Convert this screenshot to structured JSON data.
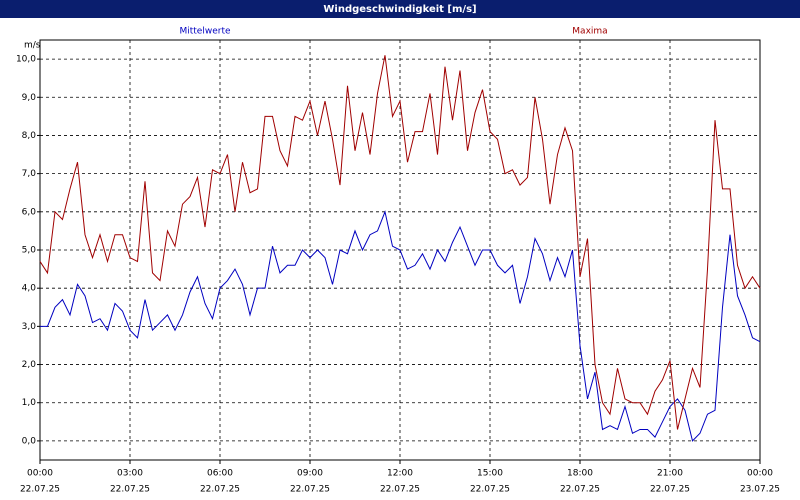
{
  "chart_data": {
    "type": "line",
    "title": "Windgeschwindigkeit [m/s]",
    "ylabel": "m/s",
    "x": [
      0,
      0.25,
      0.5,
      0.75,
      1,
      1.25,
      1.5,
      1.75,
      2,
      2.25,
      2.5,
      2.75,
      3,
      3.25,
      3.5,
      3.75,
      4,
      4.25,
      4.5,
      4.75,
      5,
      5.25,
      5.5,
      5.75,
      6,
      6.25,
      6.5,
      6.75,
      7,
      7.25,
      7.5,
      7.75,
      8,
      8.25,
      8.5,
      8.75,
      9,
      9.25,
      9.5,
      9.75,
      10,
      10.25,
      10.5,
      10.75,
      11,
      11.25,
      11.5,
      11.75,
      12,
      12.25,
      12.5,
      12.75,
      13,
      13.25,
      13.5,
      13.75,
      14,
      14.25,
      14.5,
      14.75,
      15,
      15.25,
      15.5,
      15.75,
      16,
      16.25,
      16.5,
      16.75,
      17,
      17.25,
      17.5,
      17.75,
      18,
      18.25,
      18.5,
      18.75,
      19,
      19.25,
      19.5,
      19.75,
      20,
      20.25,
      20.5,
      20.75,
      21,
      21.25,
      21.5,
      21.75,
      22,
      22.25,
      22.5,
      22.75,
      23,
      23.25,
      23.5,
      23.75,
      24
    ],
    "series": [
      {
        "name": "Mittelwerte",
        "color": "#0000c0",
        "values": [
          3.0,
          3.0,
          3.5,
          3.7,
          3.3,
          4.1,
          3.8,
          3.1,
          3.2,
          2.9,
          3.6,
          3.4,
          2.9,
          2.7,
          3.7,
          2.9,
          3.1,
          3.3,
          2.9,
          3.3,
          3.9,
          4.3,
          3.6,
          3.2,
          4.0,
          4.2,
          4.5,
          4.1,
          3.3,
          4.0,
          4.0,
          5.1,
          4.4,
          4.6,
          4.6,
          5.0,
          4.8,
          5.0,
          4.8,
          4.1,
          5.0,
          4.9,
          5.5,
          5.0,
          5.4,
          5.5,
          6.0,
          5.1,
          5.0,
          4.5,
          4.6,
          4.9,
          4.5,
          5.0,
          4.7,
          5.2,
          5.6,
          5.1,
          4.6,
          5.0,
          5.0,
          4.6,
          4.4,
          4.6,
          3.6,
          4.3,
          5.3,
          4.9,
          4.2,
          4.8,
          4.3,
          5.0,
          2.5,
          1.1,
          1.8,
          0.3,
          0.4,
          0.3,
          0.9,
          0.2,
          0.3,
          0.3,
          0.1,
          0.5,
          0.9,
          1.1,
          0.8,
          0.0,
          0.2,
          0.7,
          0.8,
          3.5,
          5.4,
          3.8,
          3.3,
          2.7,
          2.6
        ]
      },
      {
        "name": "Maxima",
        "color": "#a00000",
        "values": [
          4.7,
          4.4,
          6.0,
          5.8,
          6.6,
          7.3,
          5.4,
          4.8,
          5.4,
          4.7,
          5.4,
          5.4,
          4.8,
          4.7,
          6.8,
          4.4,
          4.2,
          5.5,
          5.1,
          6.2,
          6.4,
          6.9,
          5.6,
          7.1,
          7.0,
          7.5,
          6.0,
          7.3,
          6.5,
          6.6,
          8.5,
          8.5,
          7.6,
          7.2,
          8.5,
          8.4,
          8.9,
          8.0,
          8.9,
          7.9,
          6.7,
          9.3,
          7.6,
          8.6,
          7.5,
          9.1,
          10.1,
          8.5,
          8.9,
          7.3,
          8.1,
          8.1,
          9.1,
          7.5,
          9.8,
          8.4,
          9.7,
          7.6,
          8.6,
          9.2,
          8.1,
          7.9,
          7.0,
          7.1,
          6.7,
          6.9,
          9.0,
          7.9,
          6.2,
          7.5,
          8.2,
          7.6,
          4.3,
          5.3,
          2.0,
          1.0,
          0.7,
          1.9,
          1.1,
          1.0,
          1.0,
          0.7,
          1.3,
          1.6,
          2.1,
          0.3,
          1.1,
          1.9,
          1.4,
          4.5,
          8.4,
          6.6,
          6.6,
          4.6,
          4.0,
          4.3,
          4.0
        ]
      }
    ],
    "xlim": [
      0,
      24
    ],
    "xticks": [
      {
        "value": 0,
        "label": "00:00"
      },
      {
        "value": 3,
        "label": "03:00"
      },
      {
        "value": 6,
        "label": "06:00"
      },
      {
        "value": 9,
        "label": "09:00"
      },
      {
        "value": 12,
        "label": "12:00"
      },
      {
        "value": 15,
        "label": "15:00"
      },
      {
        "value": 18,
        "label": "18:00"
      },
      {
        "value": 21,
        "label": "21:00"
      },
      {
        "value": 24,
        "label": "00:00"
      }
    ],
    "xtick_dates": [
      "22.07.25",
      "22.07.25",
      "22.07.25",
      "22.07.25",
      "22.07.25",
      "22.07.25",
      "22.07.25",
      "22.07.25",
      "23.07.25"
    ],
    "ylim": [
      -0.5,
      10.5
    ],
    "yticks": [
      {
        "value": 0,
        "label": "0,0"
      },
      {
        "value": 1,
        "label": "1,0"
      },
      {
        "value": 2,
        "label": "2,0"
      },
      {
        "value": 3,
        "label": "3,0"
      },
      {
        "value": 4,
        "label": "4,0"
      },
      {
        "value": 5,
        "label": "5,0"
      },
      {
        "value": 6,
        "label": "6,0"
      },
      {
        "value": 7,
        "label": "7,0"
      },
      {
        "value": 8,
        "label": "8,0"
      },
      {
        "value": 9,
        "label": "9,0"
      },
      {
        "value": 10,
        "label": "10,0"
      }
    ],
    "grid": true
  }
}
